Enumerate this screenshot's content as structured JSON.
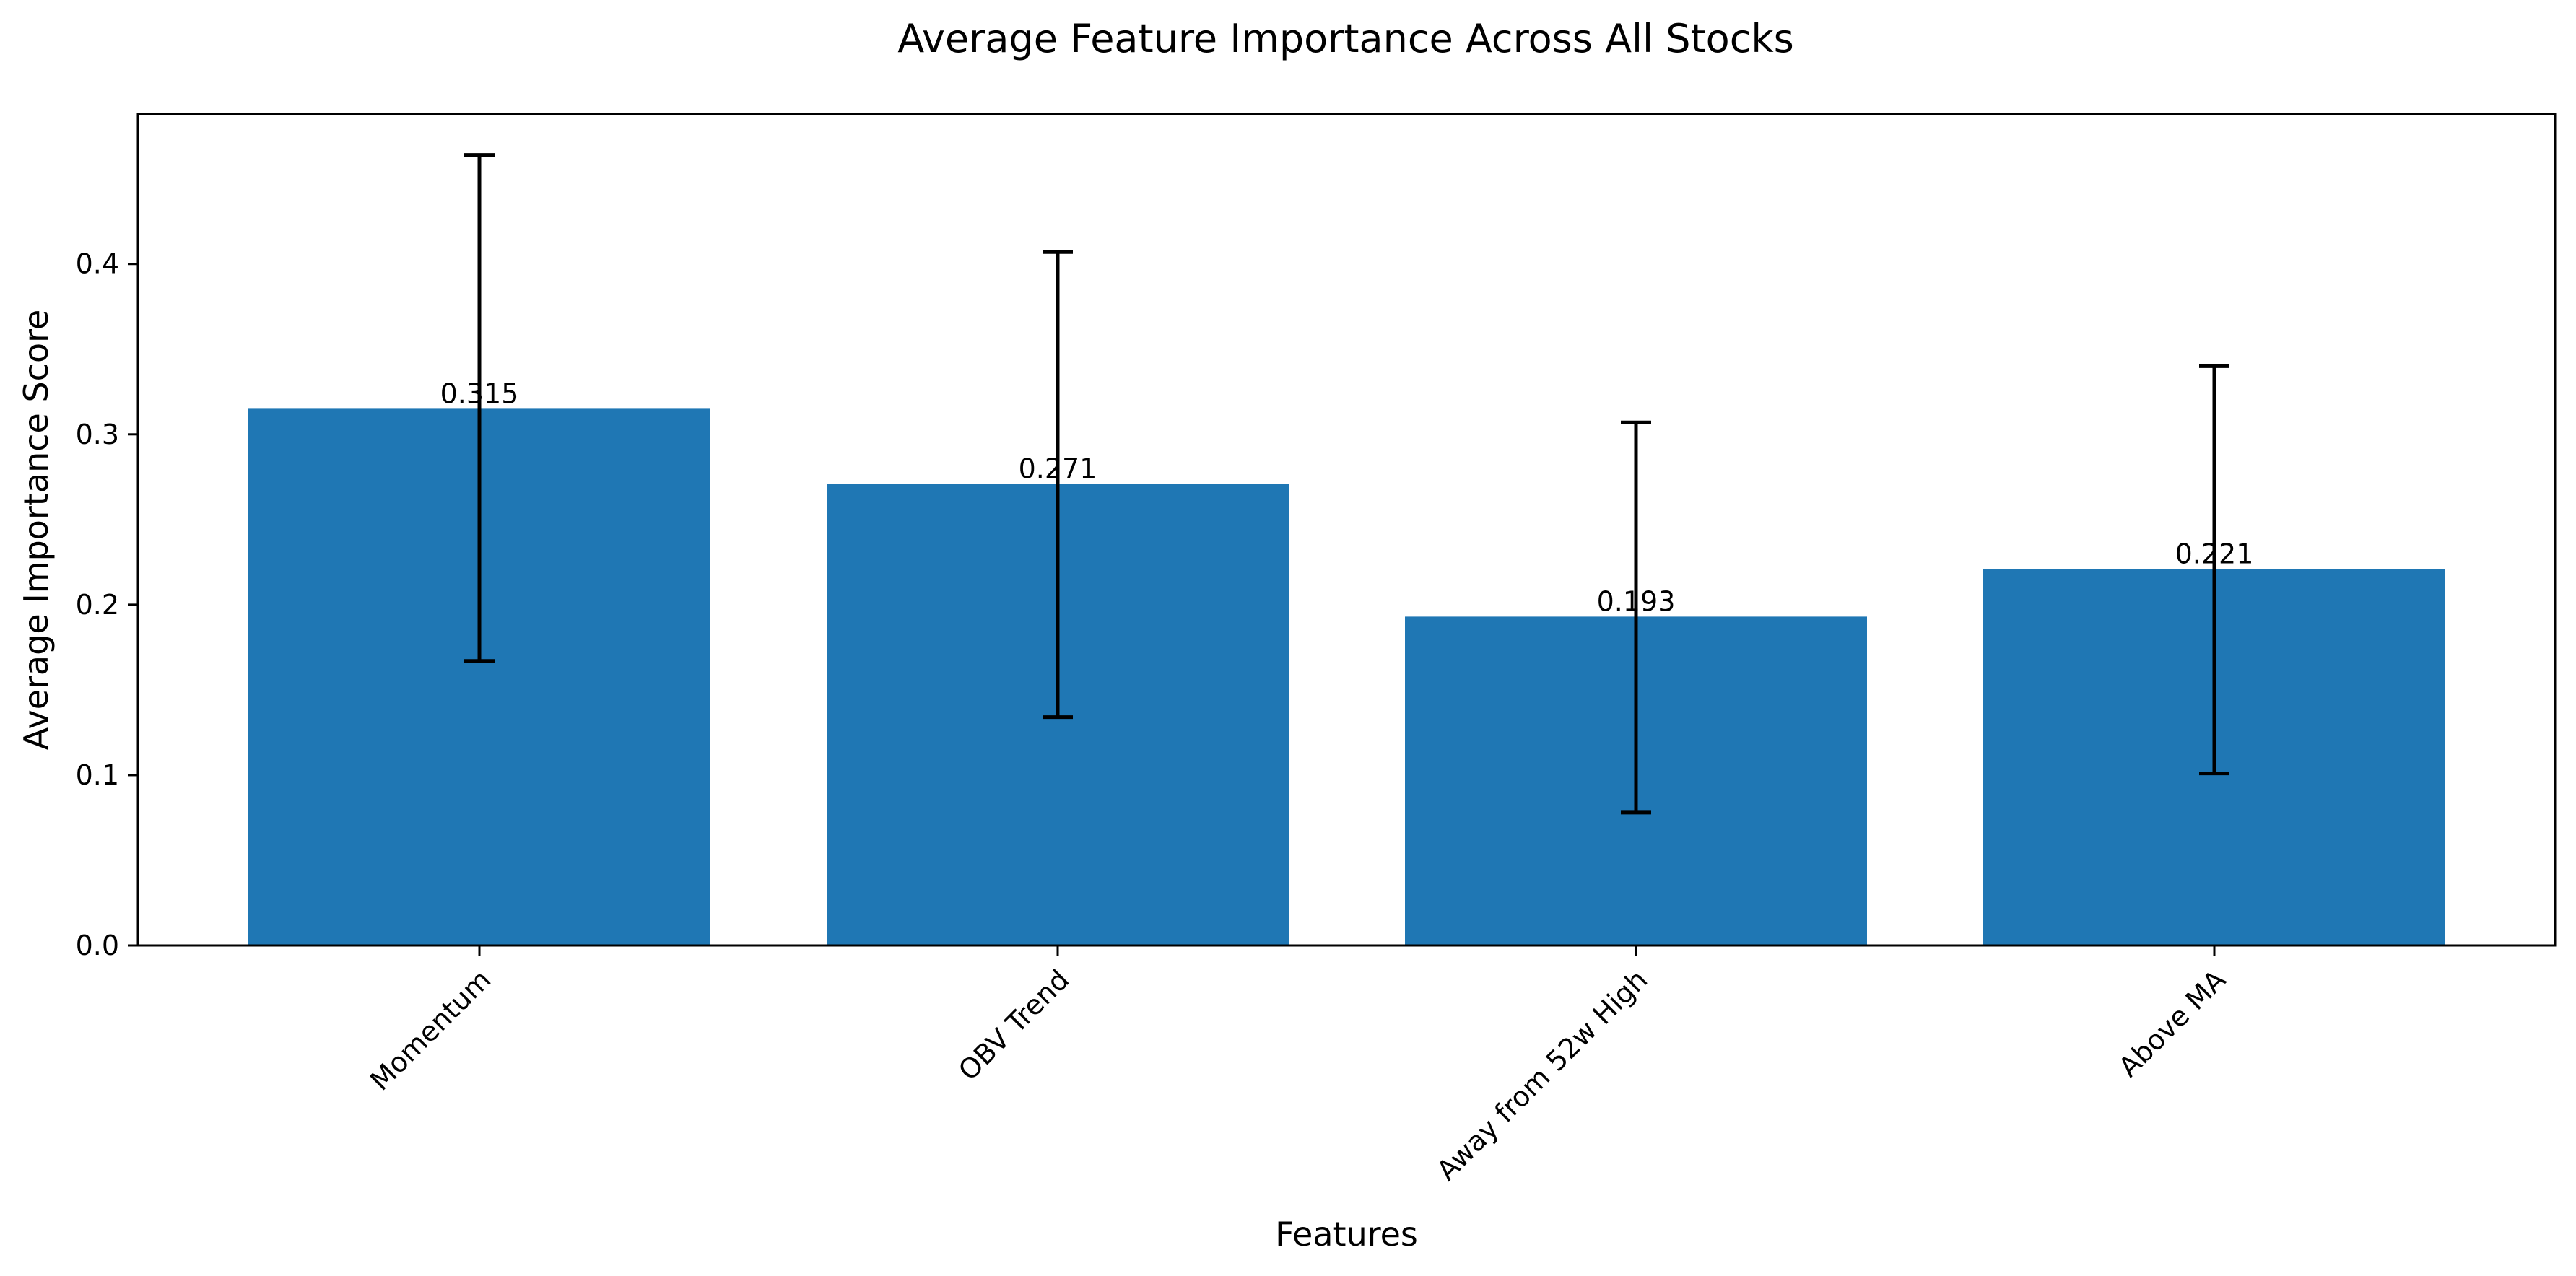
{
  "chart_data": {
    "type": "bar",
    "title": "Average Feature Importance Across All Stocks",
    "xlabel": "Features",
    "ylabel": "Average Importance Score",
    "categories": [
      "Momentum",
      "OBV Trend",
      "Away from 52w High",
      "Above MA"
    ],
    "values": [
      0.315,
      0.271,
      0.193,
      0.221
    ],
    "value_labels": [
      "0.315",
      "0.271",
      "0.193",
      "0.221"
    ],
    "error_low": [
      0.167,
      0.134,
      0.078,
      0.101
    ],
    "error_high": [
      0.464,
      0.407,
      0.307,
      0.34
    ],
    "ylim": [
      0,
      0.488
    ],
    "yticks": [
      0.0,
      0.1,
      0.2,
      0.3,
      0.4
    ],
    "ytick_labels": [
      "0.0",
      "0.1",
      "0.2",
      "0.3",
      "0.4"
    ],
    "xtick_rotation": 45,
    "grid": false,
    "legend": "none",
    "bar_color": "#1f77b4",
    "error_color": "#000000"
  }
}
